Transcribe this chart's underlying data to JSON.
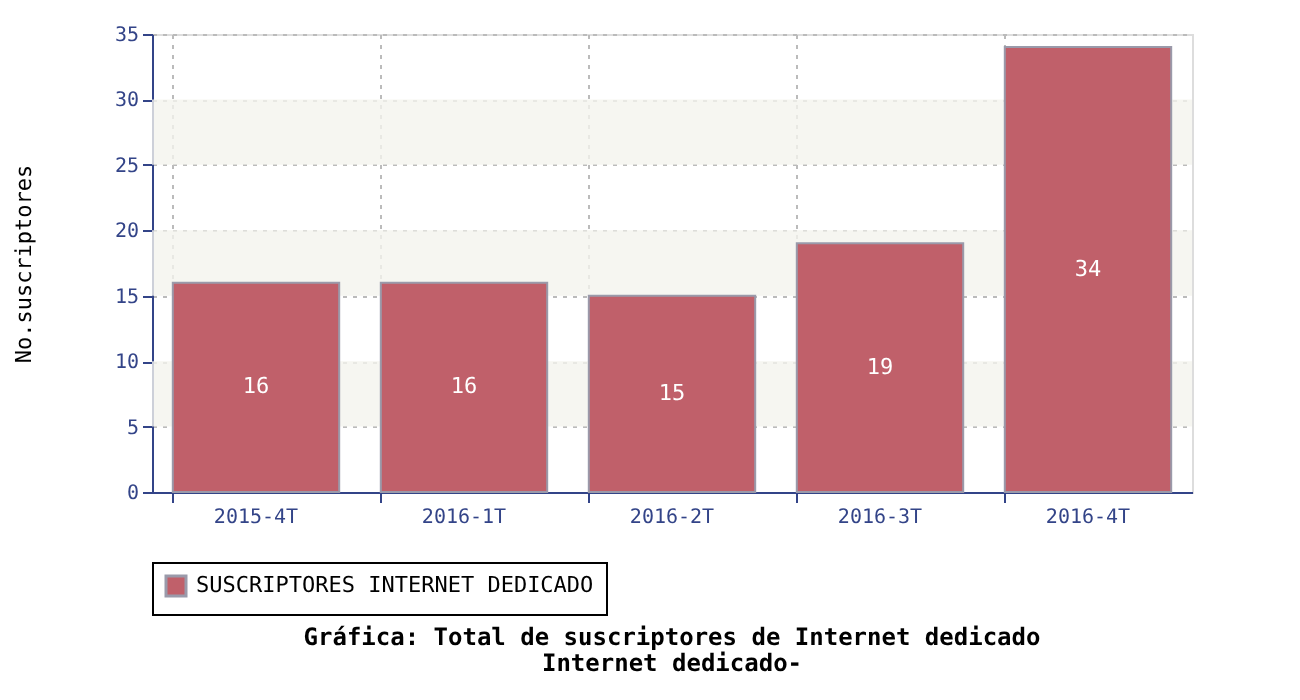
{
  "chart_data": {
    "type": "bar",
    "title": "Gráfica: Total de suscriptores de Internet dedicado",
    "subtitle": "Internet dedicado-",
    "ylabel": "No.suscriptores",
    "categories": [
      "2015-4T",
      "2016-1T",
      "2016-2T",
      "2016-3T",
      "2016-4T"
    ],
    "series": [
      {
        "name": "SUSCRIPTORES INTERNET DEDICADO",
        "color": "#c0606a",
        "values": [
          16,
          16,
          15,
          19,
          34
        ]
      }
    ],
    "ylim": [
      0,
      35
    ],
    "yticks": [
      0,
      5,
      10,
      15,
      20,
      25,
      30,
      35
    ],
    "grid": true,
    "legend": "bottom",
    "data_labels": true,
    "bands": [
      {
        "axis": "y",
        "from": 5,
        "to": 10,
        "color": "#f4f4ee"
      },
      {
        "axis": "y",
        "from": 15,
        "to": 20,
        "color": "#f4f4ee"
      },
      {
        "axis": "y",
        "from": 25,
        "to": 30,
        "color": "#f4f4ee"
      }
    ]
  }
}
